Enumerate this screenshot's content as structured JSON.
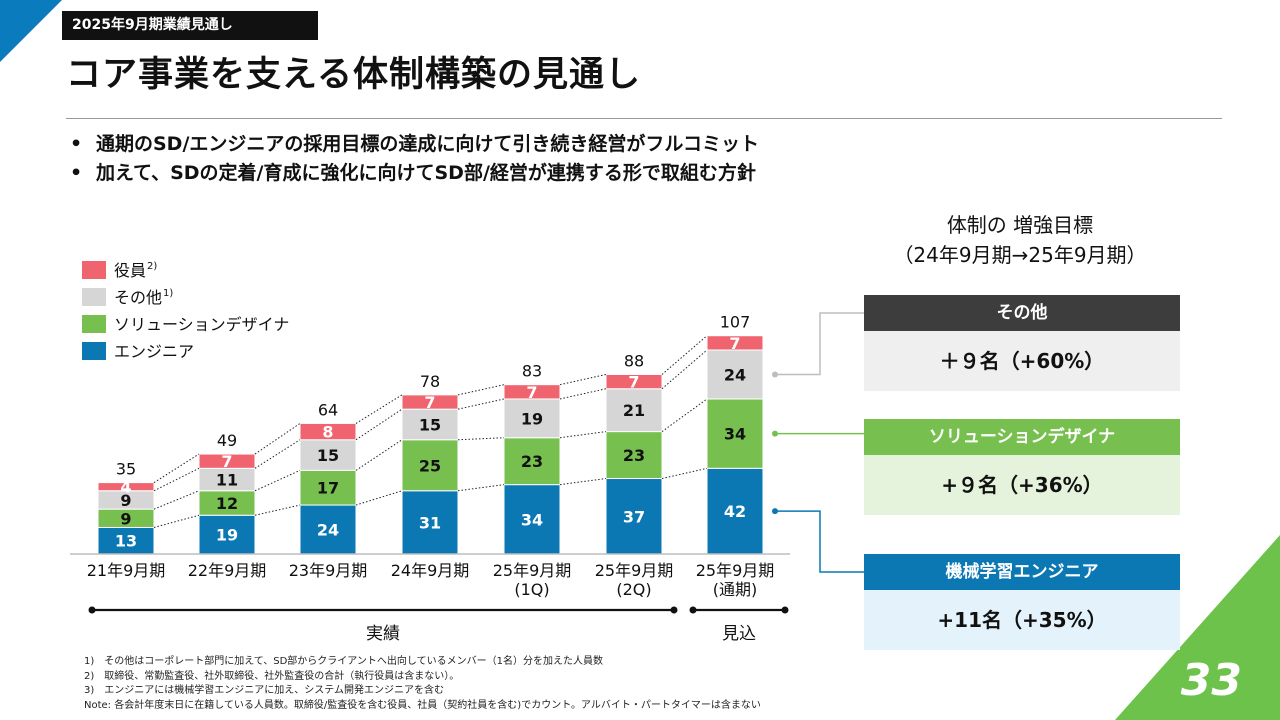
{
  "header": {
    "tag": "2025年9月期業績見通し",
    "title": "コア事業を支える体制構築の見通し"
  },
  "bullets": [
    "通期のSD/エンジニアの採用目標の達成に向けて引き続き経営がフルコミット",
    "加えて、SDの定着/育成に強化に向けてSD部/経営が連携する形で取組む方針"
  ],
  "targets": {
    "title_line1": "体制の 増強目標",
    "title_line2": "（24年9月期→25年9月期）",
    "items": [
      {
        "label": "その他",
        "value": "＋９名（+60%）",
        "head_color": "#3d3d3d",
        "body_color": "#efefef"
      },
      {
        "label": "ソリューションデザイナ",
        "value": "+９名（+36%）",
        "head_color": "#77c04f",
        "body_color": "#e6f3dc"
      },
      {
        "label": "機械学習エンジニア",
        "value": "+11名（+35%）",
        "head_color": "#0b78b4",
        "body_color": "#e4f3fb"
      }
    ]
  },
  "chart_data": {
    "type": "bar",
    "stacked": true,
    "categories": [
      [
        "21年9月期"
      ],
      [
        "22年9月期"
      ],
      [
        "23年9月期"
      ],
      [
        "24年9月期"
      ],
      [
        "25年9月期",
        "(1Q)"
      ],
      [
        "25年9月期",
        "(2Q)"
      ],
      [
        "25年9月期",
        "(通期)"
      ]
    ],
    "series": [
      {
        "name": "エンジニア",
        "sup": "",
        "color": "#0b78b4",
        "label_color": "#ffffff",
        "values": [
          13,
          19,
          24,
          31,
          34,
          37,
          42
        ]
      },
      {
        "name": "ソリューションデザイナ",
        "sup": "",
        "color": "#77c04f",
        "label_color": "#111111",
        "values": [
          9,
          12,
          17,
          25,
          23,
          23,
          34
        ]
      },
      {
        "name": "その他",
        "sup": "1)",
        "color": "#d6d6d6",
        "label_color": "#111111",
        "values": [
          9,
          11,
          15,
          15,
          19,
          21,
          24
        ]
      },
      {
        "name": "役員",
        "sup": "2)",
        "color": "#f0646f",
        "label_color": "#ffffff",
        "values": [
          4,
          7,
          8,
          7,
          7,
          7,
          7
        ]
      }
    ],
    "totals": [
      35,
      49,
      64,
      78,
      83,
      88,
      107
    ],
    "periods": [
      {
        "label": "実績",
        "from": 0,
        "to": 5
      },
      {
        "label": "見込",
        "from": 6,
        "to": 6
      }
    ]
  },
  "notes": [
    "1)　その他はコーポレート部門に加えて、SD部からクライアントへ出向しているメンバー（1名）分を加えた人員数",
    "2)　取締役、常勤監査役、社外取締役、社外監査役の合計（執行役員は含まない）。",
    "3)　エンジニアには機械学習エンジニアに加え、システム開発エンジニアを含む",
    "Note: 各会計年度末日に在籍している人員数。取締役/監査役を含む役員、社員（契約社員を含む)でカウント。アルバイト・パートタイマーは含まない"
  ],
  "page_number": "33"
}
